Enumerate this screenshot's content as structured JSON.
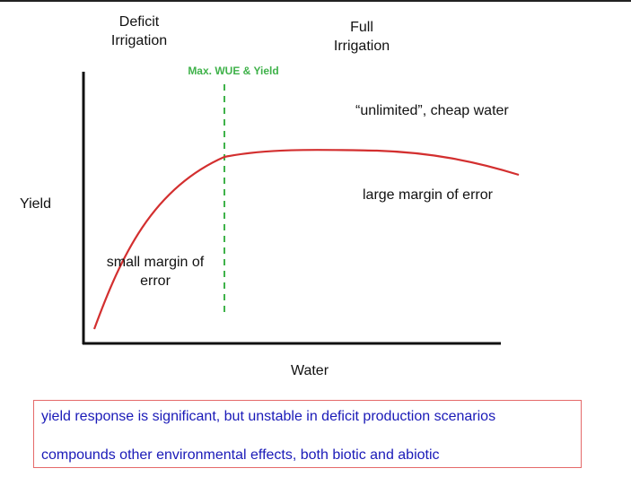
{
  "labels": {
    "deficit": "Deficit\nIrrigation",
    "full": "Full\nIrrigation",
    "max_wue": "Max. WUE & Yield",
    "unlimited": "“unlimited”, cheap water",
    "large_margin": "large margin of error",
    "small_margin": "small margin of\nerror",
    "y_axis": "Yield",
    "x_axis": "Water"
  },
  "notes": [
    "yield response is significant, but unstable in deficit production scenarios",
    "compounds other environmental effects, both biotic and abiotic"
  ],
  "colors": {
    "curve": "#d32f2f",
    "dashed_line": "#3fb24a",
    "note_text": "#1a1ab8",
    "note_border": "#e56a6a"
  }
}
